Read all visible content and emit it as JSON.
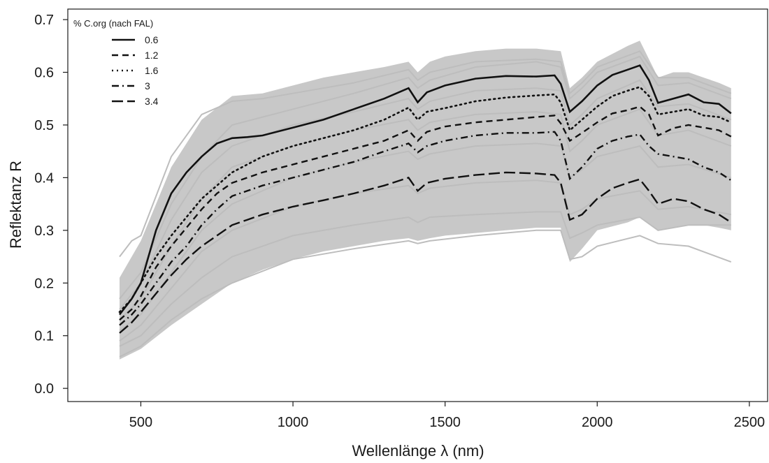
{
  "chart_data": {
    "type": "line",
    "xlabel": "Wellenlänge λ  (nm)",
    "ylabel": "Reflektanz R",
    "xlim": [
      260,
      2560
    ],
    "ylim": [
      -0.025,
      0.72
    ],
    "x_ticks": [
      500,
      1000,
      1500,
      2000,
      2500
    ],
    "y_ticks": [
      0.0,
      0.1,
      0.2,
      0.3,
      0.4,
      0.5,
      0.6,
      0.7
    ],
    "x_tick_labels": [
      "500",
      "1000",
      "1500",
      "2000",
      "2500"
    ],
    "y_tick_labels": [
      "0.0",
      "0.1",
      "0.2",
      "0.3",
      "0.4",
      "0.5",
      "0.6",
      "0.7"
    ],
    "grid": false,
    "legend": {
      "title": "% C.org (nach FAL)",
      "position": "top-left",
      "entries": [
        "0.6",
        "1.2",
        "1.6",
        "3",
        "3.4"
      ]
    },
    "background_band": {
      "color": "#c8c8c8",
      "x": [
        430,
        500,
        600,
        700,
        800,
        900,
        1000,
        1100,
        1200,
        1300,
        1380,
        1410,
        1450,
        1500,
        1600,
        1700,
        1800,
        1880,
        1910,
        1950,
        2000,
        2100,
        2140,
        2200,
        2250,
        2300,
        2350,
        2400,
        2440
      ],
      "upper": [
        0.21,
        0.28,
        0.42,
        0.51,
        0.555,
        0.56,
        0.575,
        0.59,
        0.6,
        0.61,
        0.62,
        0.6,
        0.62,
        0.63,
        0.64,
        0.645,
        0.645,
        0.64,
        0.57,
        0.59,
        0.62,
        0.65,
        0.66,
        0.59,
        0.6,
        0.6,
        0.59,
        0.58,
        0.57
      ],
      "lower": [
        0.055,
        0.075,
        0.12,
        0.16,
        0.2,
        0.225,
        0.245,
        0.26,
        0.27,
        0.28,
        0.285,
        0.28,
        0.285,
        0.29,
        0.295,
        0.3,
        0.305,
        0.305,
        0.24,
        0.265,
        0.3,
        0.315,
        0.325,
        0.3,
        0.305,
        0.31,
        0.31,
        0.305,
        0.3
      ]
    },
    "sample_color": "#bdbdbd",
    "series": [
      {
        "name": "0.6",
        "dash": "solid",
        "x": [
          430,
          470,
          500,
          550,
          600,
          650,
          700,
          750,
          800,
          850,
          900,
          1000,
          1100,
          1200,
          1300,
          1380,
          1410,
          1440,
          1500,
          1600,
          1700,
          1800,
          1860,
          1880,
          1910,
          1950,
          2000,
          2050,
          2100,
          2140,
          2170,
          2200,
          2250,
          2300,
          2350,
          2400,
          2440
        ],
        "y": [
          0.14,
          0.17,
          0.2,
          0.3,
          0.37,
          0.41,
          0.44,
          0.465,
          0.475,
          0.477,
          0.48,
          0.495,
          0.51,
          0.53,
          0.55,
          0.57,
          0.543,
          0.562,
          0.575,
          0.588,
          0.593,
          0.592,
          0.594,
          0.578,
          0.525,
          0.545,
          0.575,
          0.595,
          0.605,
          0.613,
          0.585,
          0.542,
          0.55,
          0.558,
          0.543,
          0.54,
          0.522
        ]
      },
      {
        "name": "1.2",
        "dash": "dashed",
        "x": [
          430,
          470,
          500,
          550,
          600,
          650,
          700,
          750,
          800,
          850,
          900,
          1000,
          1100,
          1200,
          1300,
          1380,
          1410,
          1440,
          1500,
          1600,
          1700,
          1800,
          1860,
          1880,
          1910,
          1950,
          2000,
          2050,
          2100,
          2140,
          2170,
          2200,
          2250,
          2300,
          2350,
          2400,
          2440
        ],
        "y": [
          0.13,
          0.15,
          0.175,
          0.23,
          0.27,
          0.305,
          0.34,
          0.37,
          0.39,
          0.4,
          0.41,
          0.425,
          0.44,
          0.455,
          0.47,
          0.49,
          0.47,
          0.487,
          0.497,
          0.505,
          0.51,
          0.515,
          0.518,
          0.503,
          0.47,
          0.485,
          0.505,
          0.522,
          0.528,
          0.535,
          0.52,
          0.48,
          0.494,
          0.5,
          0.495,
          0.49,
          0.478
        ]
      },
      {
        "name": "1.6",
        "dash": "dotted",
        "x": [
          430,
          470,
          500,
          550,
          600,
          650,
          700,
          750,
          800,
          850,
          900,
          1000,
          1100,
          1200,
          1300,
          1380,
          1410,
          1440,
          1500,
          1600,
          1700,
          1800,
          1860,
          1880,
          1910,
          1950,
          2000,
          2050,
          2100,
          2140,
          2170,
          2200,
          2250,
          2300,
          2350,
          2400,
          2440
        ],
        "y": [
          0.145,
          0.17,
          0.2,
          0.25,
          0.29,
          0.325,
          0.36,
          0.385,
          0.41,
          0.425,
          0.44,
          0.46,
          0.475,
          0.49,
          0.51,
          0.533,
          0.51,
          0.525,
          0.532,
          0.545,
          0.552,
          0.556,
          0.558,
          0.543,
          0.49,
          0.51,
          0.535,
          0.555,
          0.565,
          0.572,
          0.555,
          0.52,
          0.525,
          0.53,
          0.518,
          0.515,
          0.505
        ]
      },
      {
        "name": "3",
        "dash": "dashdot",
        "x": [
          430,
          470,
          500,
          550,
          600,
          650,
          700,
          750,
          800,
          850,
          900,
          1000,
          1100,
          1200,
          1300,
          1380,
          1410,
          1440,
          1500,
          1600,
          1700,
          1800,
          1860,
          1880,
          1910,
          1950,
          2000,
          2050,
          2100,
          2140,
          2170,
          2200,
          2250,
          2300,
          2350,
          2400,
          2440
        ],
        "y": [
          0.12,
          0.14,
          0.16,
          0.2,
          0.24,
          0.27,
          0.31,
          0.34,
          0.365,
          0.375,
          0.385,
          0.4,
          0.415,
          0.43,
          0.45,
          0.465,
          0.448,
          0.46,
          0.47,
          0.48,
          0.485,
          0.485,
          0.487,
          0.47,
          0.398,
          0.42,
          0.455,
          0.47,
          0.478,
          0.482,
          0.46,
          0.445,
          0.44,
          0.435,
          0.42,
          0.41,
          0.395
        ]
      },
      {
        "name": "3.4",
        "dash": "longdash",
        "x": [
          430,
          470,
          500,
          550,
          600,
          650,
          700,
          750,
          800,
          850,
          900,
          1000,
          1100,
          1200,
          1300,
          1380,
          1410,
          1440,
          1500,
          1600,
          1700,
          1800,
          1860,
          1880,
          1910,
          1950,
          2000,
          2050,
          2100,
          2140,
          2170,
          2200,
          2250,
          2300,
          2350,
          2400,
          2440
        ],
        "y": [
          0.105,
          0.125,
          0.145,
          0.18,
          0.215,
          0.245,
          0.27,
          0.29,
          0.31,
          0.32,
          0.33,
          0.345,
          0.357,
          0.37,
          0.385,
          0.4,
          0.375,
          0.39,
          0.398,
          0.405,
          0.41,
          0.408,
          0.405,
          0.39,
          0.32,
          0.33,
          0.36,
          0.38,
          0.39,
          0.397,
          0.375,
          0.35,
          0.36,
          0.355,
          0.34,
          0.33,
          0.315
        ]
      }
    ],
    "sample_lines": [
      {
        "x": [
          430,
          470,
          500,
          600,
          700,
          800,
          900,
          1000,
          1200,
          1380,
          1410,
          1450,
          1600,
          1800,
          1880,
          1910,
          1950,
          2000,
          2140,
          2200,
          2300,
          2440
        ],
        "y": [
          0.25,
          0.28,
          0.29,
          0.44,
          0.52,
          0.545,
          0.55,
          0.56,
          0.58,
          0.605,
          0.585,
          0.6,
          0.62,
          0.625,
          0.62,
          0.56,
          0.58,
          0.61,
          0.64,
          0.59,
          0.59,
          0.56
        ]
      },
      {
        "x": [
          430,
          500,
          600,
          700,
          800,
          1000,
          1200,
          1380,
          1410,
          1450,
          1600,
          1800,
          1880,
          1910,
          1950,
          2000,
          2140,
          2200,
          2300,
          2440
        ],
        "y": [
          0.06,
          0.08,
          0.13,
          0.17,
          0.2,
          0.245,
          0.265,
          0.28,
          0.275,
          0.28,
          0.29,
          0.3,
          0.3,
          0.245,
          0.25,
          0.27,
          0.29,
          0.275,
          0.27,
          0.24
        ]
      },
      {
        "x": [
          430,
          500,
          600,
          700,
          800,
          1000,
          1200,
          1380,
          1410,
          1450,
          1600,
          1800,
          1880,
          1910,
          1950,
          2000,
          2140,
          2200,
          2300,
          2440
        ],
        "y": [
          0.08,
          0.1,
          0.16,
          0.21,
          0.25,
          0.29,
          0.31,
          0.325,
          0.315,
          0.325,
          0.33,
          0.335,
          0.335,
          0.285,
          0.295,
          0.31,
          0.325,
          0.3,
          0.31,
          0.31
        ]
      },
      {
        "x": [
          430,
          500,
          600,
          700,
          800,
          1000,
          1200,
          1380,
          1410,
          1450,
          1600,
          1800,
          1880,
          1910,
          1950,
          2000,
          2140,
          2200,
          2300,
          2440
        ],
        "y": [
          0.17,
          0.22,
          0.35,
          0.44,
          0.5,
          0.53,
          0.56,
          0.59,
          0.57,
          0.585,
          0.61,
          0.62,
          0.61,
          0.55,
          0.57,
          0.6,
          0.63,
          0.575,
          0.58,
          0.55
        ]
      },
      {
        "x": [
          430,
          500,
          600,
          700,
          800,
          1000,
          1200,
          1380,
          1410,
          1450,
          1600,
          1800,
          1880,
          1910,
          1950,
          2000,
          2140,
          2200,
          2300,
          2440
        ],
        "y": [
          0.09,
          0.12,
          0.19,
          0.26,
          0.3,
          0.345,
          0.37,
          0.385,
          0.37,
          0.38,
          0.39,
          0.395,
          0.39,
          0.33,
          0.34,
          0.36,
          0.375,
          0.34,
          0.345,
          0.33
        ]
      },
      {
        "x": [
          430,
          500,
          600,
          700,
          800,
          1000,
          1200,
          1380,
          1410,
          1450,
          1600,
          1800,
          1880,
          1910,
          1950,
          2000,
          2140,
          2200,
          2300,
          2440
        ],
        "y": [
          0.15,
          0.2,
          0.32,
          0.41,
          0.46,
          0.5,
          0.525,
          0.55,
          0.53,
          0.545,
          0.565,
          0.57,
          0.565,
          0.5,
          0.52,
          0.55,
          0.585,
          0.535,
          0.54,
          0.51
        ]
      },
      {
        "x": [
          430,
          500,
          600,
          700,
          800,
          1000,
          1200,
          1380,
          1410,
          1450,
          1600,
          1800,
          1880,
          1910,
          1950,
          2000,
          2140,
          2200,
          2300,
          2440
        ],
        "y": [
          0.11,
          0.14,
          0.22,
          0.3,
          0.35,
          0.4,
          0.43,
          0.45,
          0.435,
          0.445,
          0.46,
          0.465,
          0.46,
          0.4,
          0.415,
          0.44,
          0.46,
          0.42,
          0.425,
          0.4
        ]
      },
      {
        "x": [
          430,
          500,
          600,
          700,
          800,
          1000,
          1200,
          1380,
          1410,
          1450,
          1600,
          1800,
          1880,
          1910,
          1950,
          2000,
          2140,
          2200,
          2300,
          2440
        ],
        "y": [
          0.13,
          0.17,
          0.27,
          0.36,
          0.42,
          0.46,
          0.49,
          0.51,
          0.49,
          0.505,
          0.52,
          0.525,
          0.52,
          0.45,
          0.47,
          0.5,
          0.53,
          0.48,
          0.49,
          0.46
        ]
      }
    ]
  }
}
